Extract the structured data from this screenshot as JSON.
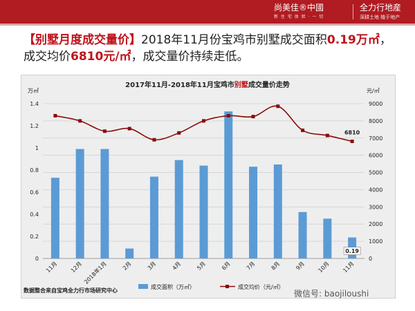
{
  "header": {
    "brand_left": "尚美佳®中國",
    "brand_left_sub": "新 住 宅 体 验 · 一 切",
    "brand_right": "全力行地産",
    "brand_right_sub": "深耕土地 植于地产"
  },
  "headline": {
    "tag": "【别墅月度成交量价】",
    "part1": "2018年11月份宝鸡市别墅成交面积",
    "area": "0.19万㎡",
    "part2": "，成交均价",
    "price": "6810元/㎡",
    "part3": "，成交量价持续走低。"
  },
  "colors": {
    "bar": "#5b9bd5",
    "line": "#8b0a0a",
    "title_red": "#c0121b",
    "header": "#b11b22"
  },
  "chart_data": {
    "type": "bar",
    "title_prefix": "2017年11月-2018年11月宝鸡市",
    "title_highlight": "别墅",
    "title_suffix": "成交量价走势",
    "categories": [
      "11月",
      "12月",
      "2018年1月",
      "2月",
      "3月",
      "4月",
      "5月",
      "6月",
      "7月",
      "8月",
      "9月",
      "10月",
      "11月"
    ],
    "y_left_unit": "万㎡",
    "y_right_unit": "元/㎡",
    "y_left_ticks": [
      "0",
      "0.2",
      "0.4",
      "0.6",
      "0.8",
      "1",
      "1.2",
      "1.4"
    ],
    "y_right_ticks": [
      "0",
      "1000",
      "2000",
      "3000",
      "4000",
      "5000",
      "6000",
      "7000",
      "8000",
      "9000"
    ],
    "y_left_range": [
      0,
      1.4
    ],
    "y_right_range": [
      0,
      9000
    ],
    "series": [
      {
        "name": "成交面积（万㎡）",
        "type": "bar",
        "axis": "left",
        "values": [
          0.73,
          0.99,
          0.99,
          0.09,
          0.74,
          0.89,
          0.84,
          1.33,
          0.83,
          0.85,
          0.42,
          0.36,
          0.19
        ]
      },
      {
        "name": "成交均价（元/㎡）",
        "type": "line",
        "axis": "right",
        "values": [
          8300,
          8000,
          7400,
          7550,
          6900,
          7300,
          8000,
          8300,
          8250,
          8850,
          7450,
          7150,
          6810
        ]
      }
    ],
    "data_labels": {
      "bar_last": "0.19",
      "line_last": "6810"
    },
    "grid": true,
    "legend": "bottom"
  },
  "footer": {
    "source": "数据整合来自宝鸡全力行市场研究中心",
    "wechat": "微信号: baojiloushi"
  }
}
